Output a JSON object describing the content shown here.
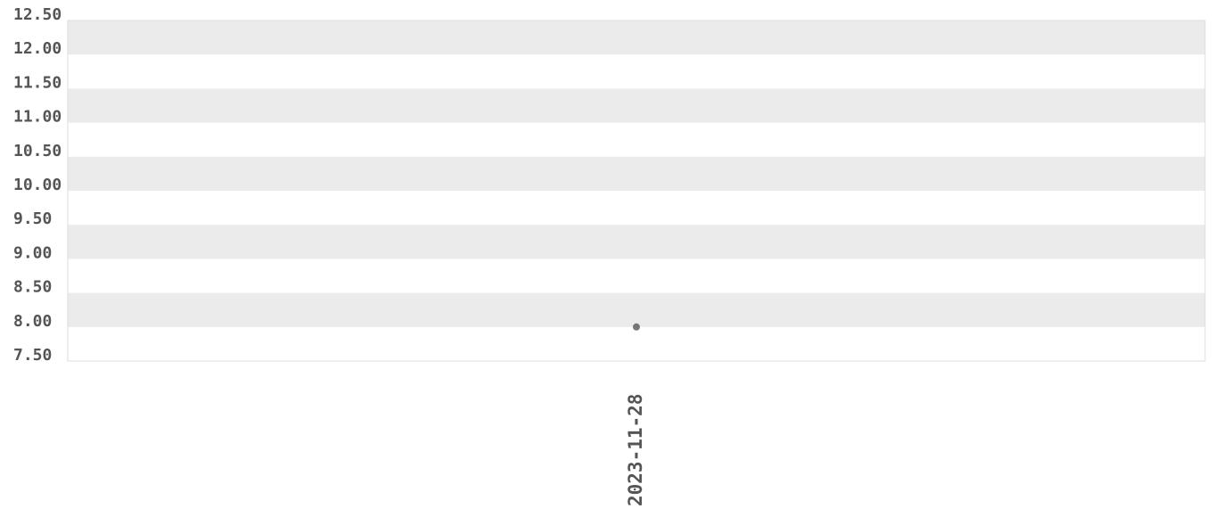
{
  "chart_data": {
    "type": "scatter",
    "title": "",
    "xlabel": "",
    "ylabel": "",
    "x_tick_labels": [
      "2023-11-28"
    ],
    "y_tick_labels": [
      "12.50",
      "12.00",
      "11.50",
      "11.00",
      "10.50",
      "10.00",
      "9.50",
      "9.00",
      "8.50",
      "8.00",
      "7.50"
    ],
    "ylim": [
      7.5,
      12.5
    ],
    "grid": "alternating horizontal bands",
    "series": [
      {
        "points": [
          {
            "x": "2023-11-28",
            "y": 8.0
          }
        ]
      }
    ],
    "colors": {
      "band": "#ebebeb",
      "point": "#777777",
      "text": "#555555",
      "border": "#dddddd"
    }
  }
}
